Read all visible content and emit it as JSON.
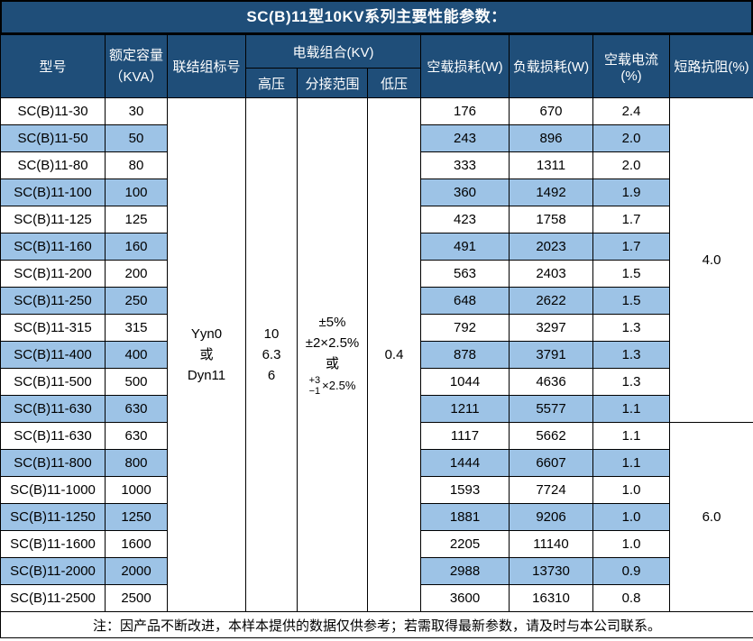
{
  "title": "SC(B)11型10KV系列主要性能参数：",
  "colors": {
    "title_bg": "#1F4E79",
    "header_bg": "#1F4E79",
    "stripe": "#9DC3E6",
    "border": "#000000",
    "header_text": "#ffffff"
  },
  "header": {
    "model": "型号",
    "capacity": "额定容量\n（KVA）",
    "connection": "联结组标号",
    "load_group": "电载组合(KV)",
    "hv": "高压",
    "tap_range": "分接范围",
    "lv": "低压",
    "no_load_loss": "空载损耗(W)",
    "load_loss": "负载损耗(W)",
    "no_load_current": "空载电流(%)",
    "impedance": "短路抗阻(%)"
  },
  "merged": {
    "connection": "Yyn0\n或\nDyn11",
    "hv": "10\n6.3\n6",
    "tap_line1": "±5%",
    "tap_line2": "±2×2.5%",
    "tap_line3": "或",
    "tap_fraction_top": "+3",
    "tap_fraction_bottom": "−1",
    "tap_fraction_suffix": "×2.5%",
    "lv": "0.4",
    "impedance_top": "4.0",
    "impedance_bottom": "6.0"
  },
  "rows": [
    {
      "model": "SC(B)11-30",
      "capacity": "30",
      "no_load_loss": "176",
      "load_loss": "670",
      "no_load_current": "2.4"
    },
    {
      "model": "SC(B)11-50",
      "capacity": "50",
      "no_load_loss": "243",
      "load_loss": "896",
      "no_load_current": "2.0"
    },
    {
      "model": "SC(B)11-80",
      "capacity": "80",
      "no_load_loss": "333",
      "load_loss": "1311",
      "no_load_current": "2.0"
    },
    {
      "model": "SC(B)11-100",
      "capacity": "100",
      "no_load_loss": "360",
      "load_loss": "1492",
      "no_load_current": "1.9"
    },
    {
      "model": "SC(B)11-125",
      "capacity": "125",
      "no_load_loss": "423",
      "load_loss": "1758",
      "no_load_current": "1.7"
    },
    {
      "model": "SC(B)11-160",
      "capacity": "160",
      "no_load_loss": "491",
      "load_loss": "2023",
      "no_load_current": "1.7"
    },
    {
      "model": "SC(B)11-200",
      "capacity": "200",
      "no_load_loss": "563",
      "load_loss": "2403",
      "no_load_current": "1.5"
    },
    {
      "model": "SC(B)11-250",
      "capacity": "250",
      "no_load_loss": "648",
      "load_loss": "2622",
      "no_load_current": "1.5"
    },
    {
      "model": "SC(B)11-315",
      "capacity": "315",
      "no_load_loss": "792",
      "load_loss": "3297",
      "no_load_current": "1.3"
    },
    {
      "model": "SC(B)11-400",
      "capacity": "400",
      "no_load_loss": "878",
      "load_loss": "3791",
      "no_load_current": "1.3"
    },
    {
      "model": "SC(B)11-500",
      "capacity": "500",
      "no_load_loss": "1044",
      "load_loss": "4636",
      "no_load_current": "1.3"
    },
    {
      "model": "SC(B)11-630",
      "capacity": "630",
      "no_load_loss": "1211",
      "load_loss": "5577",
      "no_load_current": "1.1"
    },
    {
      "model": "SC(B)11-630",
      "capacity": "630",
      "no_load_loss": "1117",
      "load_loss": "5662",
      "no_load_current": "1.1"
    },
    {
      "model": "SC(B)11-800",
      "capacity": "800",
      "no_load_loss": "1444",
      "load_loss": "6607",
      "no_load_current": "1.1"
    },
    {
      "model": "SC(B)11-1000",
      "capacity": "1000",
      "no_load_loss": "1593",
      "load_loss": "7724",
      "no_load_current": "1.0"
    },
    {
      "model": "SC(B)11-1250",
      "capacity": "1250",
      "no_load_loss": "1881",
      "load_loss": "9206",
      "no_load_current": "1.0"
    },
    {
      "model": "SC(B)11-1600",
      "capacity": "1600",
      "no_load_loss": "2205",
      "load_loss": "11140",
      "no_load_current": "1.0"
    },
    {
      "model": "SC(B)11-2000",
      "capacity": "2000",
      "no_load_loss": "2988",
      "load_loss": "13730",
      "no_load_current": "0.9"
    },
    {
      "model": "SC(B)11-2500",
      "capacity": "2500",
      "no_load_loss": "3600",
      "load_loss": "16310",
      "no_load_current": "0.8"
    }
  ],
  "note": "注：因产品不断改进，本样本提供的数据仅供参考；若需取得最新参数，请及时与本公司联系。"
}
